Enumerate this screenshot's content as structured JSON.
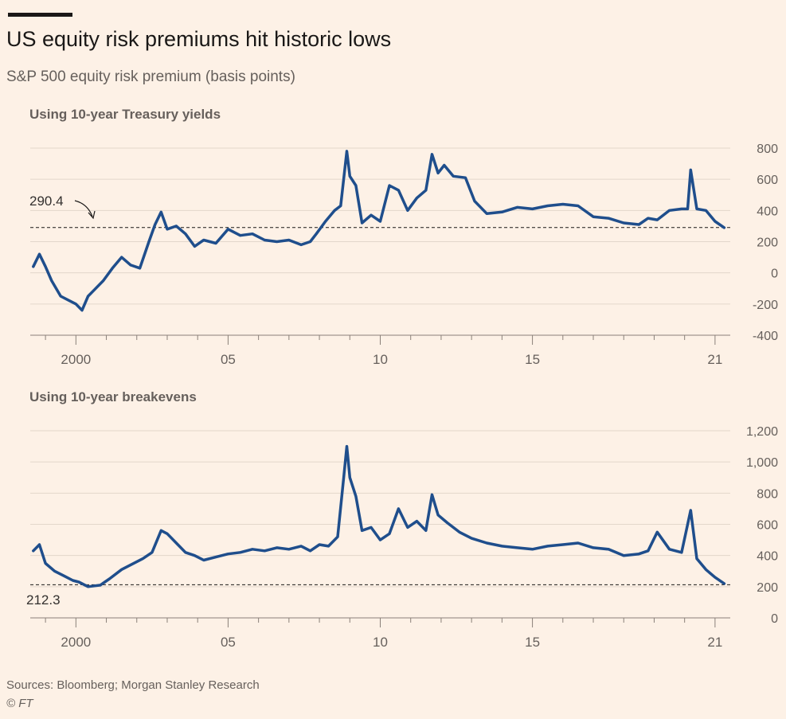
{
  "header": {
    "title": "US equity risk premiums hit historic lows",
    "subtitle": "S&P 500 equity risk premium (basis points)"
  },
  "footer": {
    "source": "Sources: Bloomberg; Morgan Stanley Research",
    "copyright": "© FT"
  },
  "colors": {
    "background": "#fdf1e6",
    "line": "#1f4e8c",
    "grid": "#e3d7cb",
    "text": "#66605c"
  },
  "chart_data": [
    {
      "type": "line",
      "title": "Using 10-year Treasury yields",
      "series": [
        {
          "x": [
            1998.6,
            1998.8,
            1999.0,
            1999.2,
            1999.5,
            1999.8,
            2000.0,
            2000.2,
            2000.4,
            2000.6,
            2000.9,
            2001.2,
            2001.5,
            2001.8,
            2002.1,
            2002.4,
            2002.6,
            2002.8,
            2003.0,
            2003.3,
            2003.6,
            2003.9,
            2004.2,
            2004.6,
            2005.0,
            2005.4,
            2005.8,
            2006.2,
            2006.6,
            2007.0,
            2007.4,
            2007.7,
            2007.9,
            2008.2,
            2008.5,
            2008.7,
            2008.9,
            2009.0,
            2009.2,
            2009.4,
            2009.7,
            2010.0,
            2010.3,
            2010.6,
            2010.9,
            2011.2,
            2011.5,
            2011.7,
            2011.9,
            2012.1,
            2012.4,
            2012.8,
            2013.1,
            2013.5,
            2014.0,
            2014.5,
            2015.0,
            2015.5,
            2016.0,
            2016.5,
            2017.0,
            2017.5,
            2018.0,
            2018.5,
            2018.8,
            2019.1,
            2019.5,
            2019.9,
            2020.1,
            2020.2,
            2020.4,
            2020.7,
            2021.0,
            2021.3
          ],
          "values": [
            40,
            120,
            40,
            -50,
            -150,
            -180,
            -200,
            -240,
            -150,
            -110,
            -50,
            30,
            100,
            50,
            30,
            200,
            310,
            390,
            280,
            300,
            250,
            170,
            210,
            190,
            280,
            240,
            250,
            210,
            200,
            210,
            180,
            200,
            250,
            330,
            400,
            430,
            780,
            620,
            560,
            320,
            370,
            330,
            560,
            530,
            400,
            480,
            530,
            760,
            640,
            690,
            620,
            610,
            460,
            380,
            390,
            420,
            410,
            430,
            440,
            430,
            360,
            350,
            320,
            310,
            350,
            340,
            400,
            410,
            410,
            660,
            410,
            400,
            330,
            290
          ]
        }
      ],
      "annotation": "290.4",
      "ylim": [
        -400,
        800
      ],
      "y_ticks": [
        "800",
        "600",
        "400",
        "200",
        "0",
        "-200",
        "-400"
      ],
      "x_ticks": [
        "2000",
        "05",
        "10",
        "15",
        "21"
      ],
      "grid": true
    },
    {
      "type": "line",
      "title": "Using 10-year breakevens",
      "series": [
        {
          "x": [
            1998.6,
            1998.8,
            1999.0,
            1999.3,
            1999.6,
            1999.9,
            2000.1,
            2000.4,
            2000.8,
            2001.1,
            2001.5,
            2001.8,
            2002.2,
            2002.5,
            2002.8,
            2003.0,
            2003.3,
            2003.6,
            2003.9,
            2004.2,
            2004.6,
            2005.0,
            2005.4,
            2005.8,
            2006.2,
            2006.6,
            2007.0,
            2007.4,
            2007.7,
            2008.0,
            2008.3,
            2008.6,
            2008.8,
            2008.9,
            2009.0,
            2009.2,
            2009.4,
            2009.7,
            2010.0,
            2010.3,
            2010.6,
            2010.9,
            2011.2,
            2011.5,
            2011.7,
            2011.9,
            2012.2,
            2012.6,
            2013.0,
            2013.5,
            2014.0,
            2014.5,
            2015.0,
            2015.5,
            2016.0,
            2016.5,
            2017.0,
            2017.5,
            2018.0,
            2018.5,
            2018.8,
            2019.1,
            2019.5,
            2019.9,
            2020.1,
            2020.2,
            2020.4,
            2020.7,
            2021.0,
            2021.3
          ],
          "values": [
            430,
            470,
            350,
            300,
            270,
            240,
            230,
            200,
            210,
            250,
            310,
            340,
            380,
            420,
            560,
            540,
            480,
            420,
            400,
            370,
            390,
            410,
            420,
            440,
            430,
            450,
            440,
            460,
            430,
            470,
            460,
            520,
            900,
            1100,
            900,
            780,
            560,
            580,
            500,
            540,
            700,
            580,
            620,
            560,
            790,
            660,
            610,
            550,
            510,
            480,
            460,
            450,
            440,
            460,
            470,
            480,
            450,
            440,
            400,
            410,
            430,
            550,
            440,
            420,
            600,
            690,
            380,
            310,
            260,
            220
          ]
        }
      ],
      "annotation": "212.3",
      "ylim": [
        0,
        1200
      ],
      "y_ticks": [
        "1,200",
        "1,000",
        "800",
        "600",
        "400",
        "200",
        "0"
      ],
      "x_ticks": [
        "2000",
        "05",
        "10",
        "15",
        "21"
      ],
      "grid": true
    }
  ]
}
